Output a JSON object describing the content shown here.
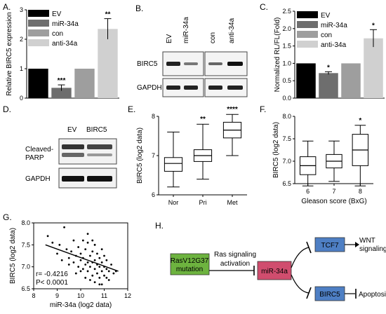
{
  "panels": {
    "A": "A.",
    "B": "B.",
    "C": "C.",
    "D": "D.",
    "E": "E.",
    "F": "F.",
    "G": "G.",
    "H": "H."
  },
  "legend": [
    "EV",
    "miR-34a",
    "con",
    "anti-34a"
  ],
  "colors": {
    "EV": "#000000",
    "miR-34a": "#6e6e6e",
    "con": "#9e9e9e",
    "anti-34a": "#d0d0d0",
    "rasbox": "#6db33f",
    "mirbox": "#d04d6e",
    "bluebox": "#4e7fc4"
  },
  "chart_data": [
    {
      "panel": "A",
      "type": "bar",
      "categories": [
        "EV",
        "miR-34a",
        "con",
        "anti-34a"
      ],
      "values": [
        1.0,
        0.35,
        1.0,
        2.35
      ],
      "errors": [
        0,
        0.1,
        0,
        0.35
      ],
      "significance": [
        "",
        "***",
        "",
        "**"
      ],
      "ylabel": "Relative BIRC5 expression",
      "ylim": [
        0,
        3
      ],
      "yticks": [
        "0",
        "1",
        "2",
        "3"
      ]
    },
    {
      "panel": "C",
      "type": "bar",
      "categories": [
        "EV",
        "miR-34a",
        "con",
        "anti-34a"
      ],
      "values": [
        1.0,
        0.72,
        1.0,
        1.72
      ],
      "errors": [
        0,
        0.04,
        0,
        0.25
      ],
      "significance": [
        "",
        "*",
        "",
        "*"
      ],
      "ylabel": "Normalized RL/FL(Fold)",
      "ylim": [
        0,
        2.5
      ],
      "yticks": [
        "0.0",
        "0.5",
        "1.0",
        "1.5",
        "2.0",
        "2.5"
      ]
    },
    {
      "panel": "E",
      "type": "box",
      "categories": [
        "Nor",
        "Pri",
        "Met"
      ],
      "boxes": [
        {
          "min": 6.2,
          "q1": 6.6,
          "median": 6.8,
          "q3": 6.95,
          "max": 7.6
        },
        {
          "min": 6.4,
          "q1": 6.85,
          "median": 7.0,
          "q3": 7.15,
          "max": 7.8
        },
        {
          "min": 7.0,
          "q1": 7.45,
          "median": 7.65,
          "q3": 7.85,
          "max": 8.05
        }
      ],
      "significance": [
        "",
        "**",
        "****"
      ],
      "ylabel": "BIRC5 (log2 data)",
      "ylim": [
        6,
        8
      ],
      "yticks": [
        "6",
        "7",
        "8"
      ]
    },
    {
      "panel": "F",
      "type": "box",
      "categories": [
        "6",
        "7",
        "8"
      ],
      "boxes": [
        {
          "min": 6.45,
          "q1": 6.7,
          "median": 6.9,
          "q3": 7.1,
          "max": 7.45
        },
        {
          "min": 6.55,
          "q1": 6.85,
          "median": 7.0,
          "q3": 7.15,
          "max": 7.45
        },
        {
          "min": 6.45,
          "q1": 6.9,
          "median": 7.25,
          "q3": 7.6,
          "max": 7.8
        }
      ],
      "significance": [
        "",
        "",
        "*"
      ],
      "ylabel": "BIRC5 (log2 data)",
      "xlabel": "Gleason score (BxG)",
      "ylim": [
        6.5,
        8.0
      ],
      "yticks": [
        "6.5",
        "7.0",
        "7.5",
        "8.0"
      ]
    },
    {
      "panel": "G",
      "type": "scatter",
      "xlabel": "miR-34a (log2 data)",
      "ylabel": "BIRC5 (log2 data)",
      "xlim": [
        8,
        12
      ],
      "ylim": [
        6.5,
        8.0
      ],
      "xticks": [
        "8",
        "9",
        "10",
        "11",
        "12"
      ],
      "yticks": [
        "6.5",
        "7.0",
        "7.5",
        "8.0"
      ],
      "trendline": {
        "x": [
          8.5,
          11.6
        ],
        "y": [
          7.5,
          6.9
        ]
      },
      "annotation": [
        "r= -0.4216",
        "P< 0.0001"
      ],
      "points": [
        [
          8.6,
          7.7
        ],
        [
          8.8,
          7.55
        ],
        [
          9.0,
          7.3
        ],
        [
          9.1,
          7.5
        ],
        [
          9.3,
          7.9
        ],
        [
          9.4,
          7.4
        ],
        [
          9.5,
          7.2
        ],
        [
          9.6,
          7.35
        ],
        [
          9.7,
          7.1
        ],
        [
          9.7,
          7.6
        ],
        [
          9.8,
          7.25
        ],
        [
          9.9,
          7.0
        ],
        [
          9.9,
          7.45
        ],
        [
          10.0,
          7.15
        ],
        [
          10.0,
          7.3
        ],
        [
          10.1,
          6.95
        ],
        [
          10.1,
          7.2
        ],
        [
          10.2,
          7.05
        ],
        [
          10.2,
          7.4
        ],
        [
          10.3,
          6.9
        ],
        [
          10.3,
          7.1
        ],
        [
          10.3,
          7.55
        ],
        [
          10.4,
          7.0
        ],
        [
          10.4,
          7.25
        ],
        [
          10.5,
          6.8
        ],
        [
          10.5,
          7.1
        ],
        [
          10.5,
          7.35
        ],
        [
          10.6,
          6.95
        ],
        [
          10.6,
          7.15
        ],
        [
          10.6,
          7.5
        ],
        [
          10.7,
          6.85
        ],
        [
          10.7,
          7.05
        ],
        [
          10.7,
          7.3
        ],
        [
          10.8,
          6.75
        ],
        [
          10.8,
          7.0
        ],
        [
          10.8,
          7.2
        ],
        [
          10.9,
          6.9
        ],
        [
          10.9,
          7.1
        ],
        [
          10.9,
          7.4
        ],
        [
          11.0,
          6.8
        ],
        [
          11.0,
          7.0
        ],
        [
          11.0,
          7.25
        ],
        [
          11.1,
          6.95
        ],
        [
          11.1,
          7.15
        ],
        [
          11.2,
          6.7
        ],
        [
          11.2,
          6.9
        ],
        [
          11.3,
          7.05
        ],
        [
          11.4,
          6.85
        ],
        [
          10.2,
          6.75
        ],
        [
          10.4,
          6.7
        ],
        [
          10.6,
          6.65
        ],
        [
          9.8,
          6.85
        ],
        [
          10.0,
          6.9
        ],
        [
          10.9,
          6.6
        ],
        [
          11.1,
          6.75
        ],
        [
          10.5,
          7.6
        ],
        [
          10.3,
          7.75
        ],
        [
          9.5,
          7.05
        ],
        [
          9.2,
          7.15
        ],
        [
          10.1,
          7.6
        ],
        [
          10.8,
          6.6
        ],
        [
          11.5,
          6.9
        ]
      ]
    }
  ],
  "blotB": {
    "lanes": [
      "EV",
      "miR-34a",
      "con",
      "anti-34a"
    ],
    "rows": [
      "BIRC5",
      "GAPDH"
    ]
  },
  "blotD": {
    "lanes": [
      "EV",
      "BIRC5"
    ],
    "rows": [
      "Cleaved-\nPARP",
      "GAPDH"
    ],
    "row1a": "Cleaved-",
    "row1b": "PARP"
  },
  "diagram": {
    "ras_line1": "RasV12G37",
    "ras_line2": "mutation",
    "ras_signal_1": "Ras signaling",
    "ras_signal_2": "activation",
    "mir": "miR-34a",
    "tcf7": "TCF7",
    "birc5": "BIRC5",
    "wnt1": "WNT",
    "wnt2": "signaling",
    "apoptosis": "Apoptosis"
  }
}
